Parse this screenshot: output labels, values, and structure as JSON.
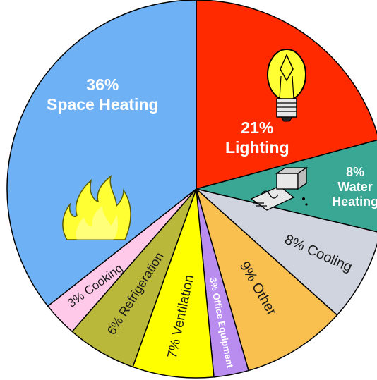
{
  "chart_data": {
    "type": "pie",
    "title": "",
    "slices": [
      {
        "name": "Lighting",
        "value": 21,
        "color": "#ff2a00",
        "labels": [
          "21%",
          "Lighting"
        ],
        "icon": "light-bulb-icon"
      },
      {
        "name": "Water Heating",
        "value": 8,
        "color": "#3aa795",
        "labels": [
          "8%",
          "Water",
          "Heating"
        ],
        "icon": "water-heater-icon"
      },
      {
        "name": "Cooling",
        "value": 8,
        "color": "#cfd4df",
        "labels": [
          "8% Cooling"
        ]
      },
      {
        "name": "Other",
        "value": 9,
        "color": "#f9c04f",
        "labels": [
          "9% Other"
        ]
      },
      {
        "name": "Office Equipment",
        "value": 3,
        "color": "#b98cf0",
        "labels": [
          "3% Office Equipment"
        ]
      },
      {
        "name": "Ventilation",
        "value": 7,
        "color": "#ffff00",
        "labels": [
          "7% Ventilation"
        ]
      },
      {
        "name": "Refrigeration",
        "value": 6,
        "color": "#b9b83a",
        "labels": [
          "6% Refrigeration"
        ]
      },
      {
        "name": "Cooking",
        "value": 3,
        "color": "#ffc9ea",
        "labels": [
          "3% Cooking"
        ]
      },
      {
        "name": "Space Heating",
        "value": 36,
        "color": "#6fb1f5",
        "labels": [
          "36%",
          "Space Heating"
        ],
        "icon": "flame-icon"
      }
    ]
  }
}
